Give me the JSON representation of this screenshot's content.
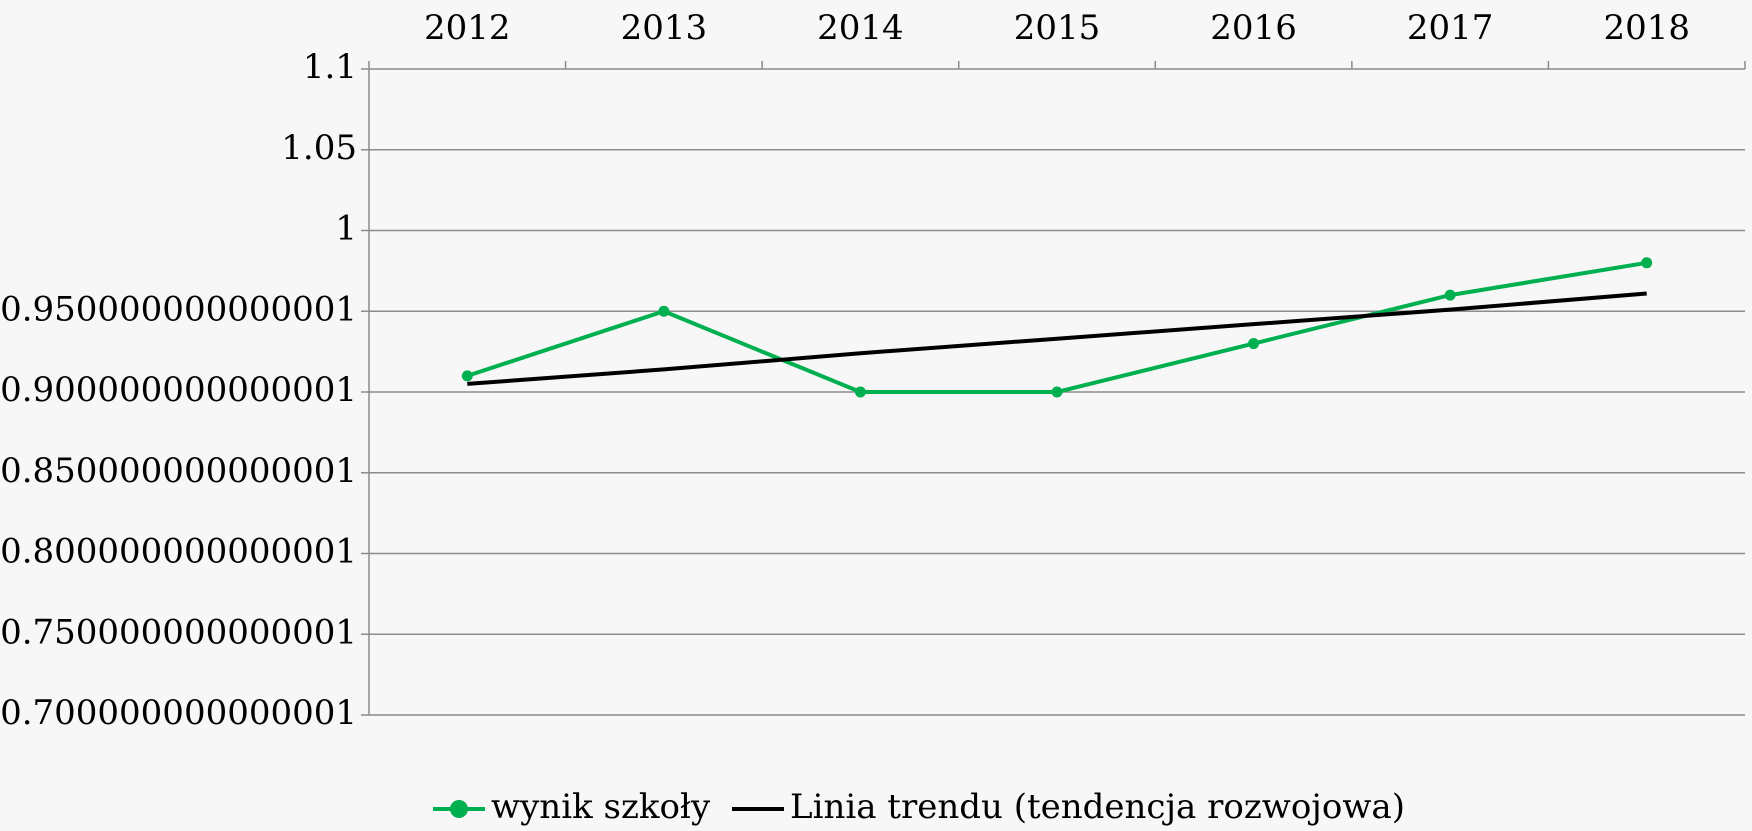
{
  "chart_data": {
    "type": "line",
    "categories": [
      "2012",
      "2013",
      "2014",
      "2015",
      "2016",
      "2017",
      "2018"
    ],
    "series": [
      {
        "name": "wynik szkoły",
        "color": "#00b050",
        "values": [
          0.91,
          0.95,
          0.9,
          0.9,
          0.93,
          0.96,
          0.98
        ],
        "markers": true
      },
      {
        "name": "Linia trendu (tendencja rozwojowa)",
        "color": "#000000",
        "values": [
          0.905,
          0.914,
          0.924,
          0.933,
          0.942,
          0.951,
          0.961
        ],
        "markers": false
      }
    ],
    "ylim": [
      0.700000000000001,
      1.1
    ],
    "yticks": [
      {
        "value": 0.700000000000001,
        "label": "0.700000000000001"
      },
      {
        "value": 0.750000000000001,
        "label": "0.750000000000001"
      },
      {
        "value": 0.800000000000001,
        "label": "0.800000000000001"
      },
      {
        "value": 0.850000000000001,
        "label": "0.850000000000001"
      },
      {
        "value": 0.900000000000001,
        "label": "0.900000000000001"
      },
      {
        "value": 0.950000000000001,
        "label": "0.950000000000001"
      },
      1,
      1.05,
      1.1
    ],
    "grid": true,
    "legend": "bottom"
  }
}
